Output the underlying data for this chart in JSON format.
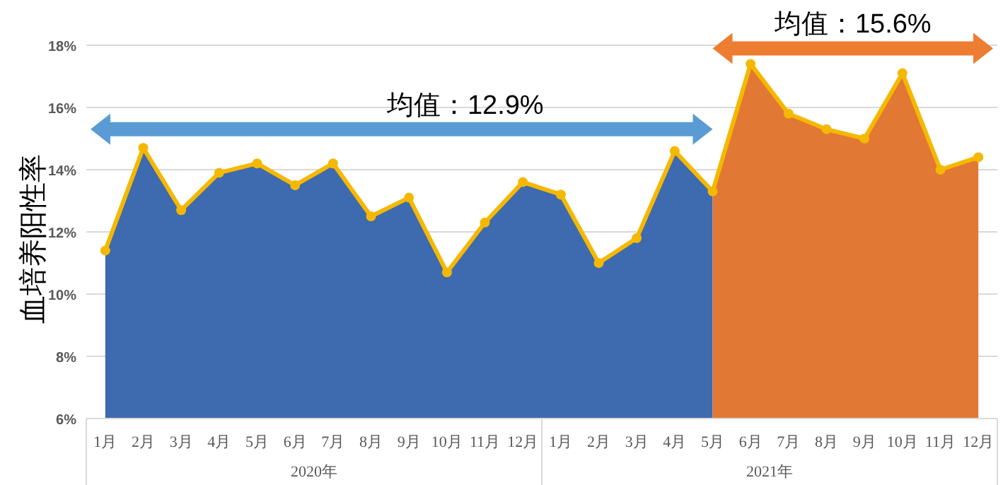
{
  "chart_data": {
    "type": "area",
    "ylabel": "血培养阳性率",
    "categories": [
      "1月",
      "2月",
      "3月",
      "4月",
      "5月",
      "6月",
      "7月",
      "8月",
      "9月",
      "10月",
      "11月",
      "12月",
      "1月",
      "2月",
      "3月",
      "4月",
      "5月",
      "6月",
      "7月",
      "8月",
      "9月",
      "10月",
      "11月",
      "12月"
    ],
    "series": [
      {
        "type": "area",
        "color": "#3e6ab0",
        "values": [
          11.4,
          14.7,
          12.7,
          13.9,
          14.2,
          13.5,
          14.2,
          12.5,
          13.1,
          10.7,
          12.3,
          13.6,
          13.2,
          11.0,
          11.8,
          14.6,
          13.3,
          null,
          null,
          null,
          null,
          null,
          null,
          null
        ]
      },
      {
        "type": "area",
        "color": "#e17834",
        "values": [
          null,
          null,
          null,
          null,
          null,
          null,
          null,
          null,
          null,
          null,
          null,
          null,
          null,
          null,
          null,
          null,
          13.3,
          17.4,
          15.8,
          15.3,
          15.0,
          17.1,
          14.0,
          14.4
        ]
      },
      {
        "type": "line",
        "marker": "circle",
        "color": "#f5b800",
        "values": [
          11.4,
          14.7,
          12.7,
          13.9,
          14.2,
          13.5,
          14.2,
          12.5,
          13.1,
          10.7,
          12.3,
          13.6,
          13.2,
          11.0,
          11.8,
          14.6,
          13.3,
          17.4,
          15.8,
          15.3,
          15.0,
          17.1,
          14.0,
          14.4
        ]
      }
    ],
    "ylim": [
      6,
      18
    ],
    "yticks": [
      {
        "value": 6,
        "label": "6%"
      },
      {
        "value": 8,
        "label": "8%"
      },
      {
        "value": 10,
        "label": "10%"
      },
      {
        "value": 12,
        "label": "12%"
      },
      {
        "value": 14,
        "label": "14%"
      },
      {
        "value": 16,
        "label": "16%"
      },
      {
        "value": 18,
        "label": "18%"
      }
    ],
    "grid": "y",
    "annotations": [
      "均值：12.9%",
      "均值：15.6%",
      "2020年",
      "2021年"
    ]
  }
}
